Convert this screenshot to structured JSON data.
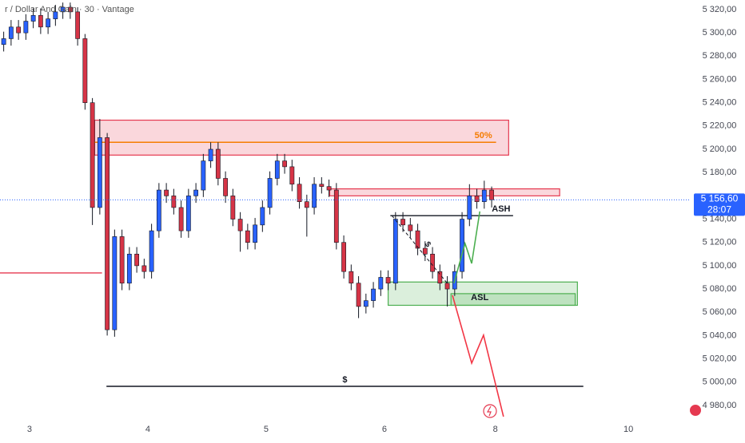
{
  "chart_data": {
    "type": "candlestick",
    "title": "r / Dollar And Gain · 30 · Vantage",
    "up_color": "#2962ff",
    "down_color": "#d63446",
    "open": [
      5290,
      5295,
      5305,
      5300,
      5310,
      5315,
      5305,
      5312,
      5318,
      5322,
      5318,
      5295,
      5240,
      5150,
      5210,
      5045,
      5125,
      5085,
      5110,
      5100,
      5095,
      5130,
      5165,
      5160,
      5150,
      5130,
      5160,
      5165,
      5190,
      5200,
      5175,
      5160,
      5140,
      5130,
      5120,
      5135,
      5150,
      5175,
      5190,
      5185,
      5170,
      5155,
      5150,
      5170,
      5168,
      5165,
      5120,
      5095,
      5085,
      5065,
      5070,
      5080,
      5090,
      5085,
      5140,
      5135,
      5130,
      5115,
      5110,
      5095,
      5085,
      5080,
      5095,
      5140,
      5160,
      5155,
      5165
    ],
    "high": [
      5301,
      5311,
      5311,
      5316,
      5321,
      5321,
      5318,
      5324,
      5326,
      5326,
      5322,
      5299,
      5244,
      5226,
      5214,
      5131,
      5131,
      5116,
      5116,
      5106,
      5136,
      5171,
      5171,
      5166,
      5156,
      5166,
      5171,
      5196,
      5206,
      5206,
      5181,
      5166,
      5146,
      5136,
      5141,
      5156,
      5181,
      5196,
      5196,
      5191,
      5176,
      5161,
      5176,
      5176,
      5174,
      5171,
      5126,
      5101,
      5091,
      5076,
      5086,
      5096,
      5096,
      5146,
      5146,
      5141,
      5136,
      5121,
      5116,
      5101,
      5091,
      5101,
      5146,
      5170,
      5166,
      5173,
      5168
    ],
    "low": [
      5284,
      5289,
      5294,
      5294,
      5304,
      5299,
      5299,
      5306,
      5312,
      5312,
      5289,
      5234,
      5135,
      5144,
      5040,
      5039,
      5079,
      5079,
      5094,
      5089,
      5089,
      5124,
      5154,
      5144,
      5124,
      5124,
      5154,
      5159,
      5184,
      5169,
      5154,
      5134,
      5112,
      5114,
      5114,
      5129,
      5144,
      5169,
      5179,
      5164,
      5149,
      5125,
      5144,
      5162,
      5159,
      5114,
      5089,
      5079,
      5055,
      5059,
      5064,
      5074,
      5079,
      5079,
      5129,
      5124,
      5109,
      5104,
      5089,
      5079,
      5065,
      5074,
      5089,
      5134,
      5149,
      5149,
      5150
    ],
    "close": [
      5295,
      5305,
      5300,
      5310,
      5315,
      5305,
      5312,
      5318,
      5322,
      5318,
      5295,
      5240,
      5150,
      5210,
      5045,
      5125,
      5085,
      5110,
      5100,
      5095,
      5130,
      5165,
      5160,
      5150,
      5130,
      5160,
      5165,
      5190,
      5200,
      5175,
      5160,
      5140,
      5130,
      5120,
      5135,
      5150,
      5175,
      5190,
      5185,
      5170,
      5155,
      5150,
      5170,
      5168,
      5165,
      5120,
      5095,
      5085,
      5065,
      5070,
      5080,
      5090,
      5085,
      5140,
      5135,
      5130,
      5115,
      5110,
      5095,
      5085,
      5080,
      5095,
      5140,
      5160,
      5155,
      5165,
      5156.6
    ],
    "xlim": [
      0,
      93.2
    ],
    "ylim": [
      4968.3,
      5328.2
    ],
    "xticks": [
      {
        "value": 4,
        "label": "3"
      },
      {
        "value": 20,
        "label": "4"
      },
      {
        "value": 36,
        "label": "5"
      },
      {
        "value": 52,
        "label": "6"
      },
      {
        "value": 67,
        "label": "8"
      },
      {
        "value": 85,
        "label": "10"
      }
    ],
    "yticks": [
      {
        "value": 5320,
        "label": "5 320,00"
      },
      {
        "value": 5300,
        "label": "5 300,00"
      },
      {
        "value": 5280,
        "label": "5 280,00"
      },
      {
        "value": 5260,
        "label": "5 260,00"
      },
      {
        "value": 5240,
        "label": "5 240,00"
      },
      {
        "value": 5220,
        "label": "5 220,00"
      },
      {
        "value": 5200,
        "label": "5 200,00"
      },
      {
        "value": 5180,
        "label": "5 180,00"
      },
      {
        "value": 5140,
        "label": "5 140,00"
      },
      {
        "value": 5120,
        "label": "5 120,00"
      },
      {
        "value": 5100,
        "label": "5 100,00"
      },
      {
        "value": 5080,
        "label": "5 080,00"
      },
      {
        "value": 5060,
        "label": "5 060,00"
      },
      {
        "value": 5040,
        "label": "5 040,00"
      },
      {
        "value": 5020,
        "label": "5 020,00"
      },
      {
        "value": 5000,
        "label": "5 000,00"
      },
      {
        "value": 4980,
        "label": "4 980,00"
      }
    ],
    "last_price": {
      "value": 5156.6,
      "label": "5 156,60",
      "countdown": "28:07",
      "color": "#2962ff"
    },
    "zones": [
      {
        "color": "#e53950",
        "y": [
          5225,
          5195
        ],
        "x": [
          12.8,
          68.8
        ]
      },
      {
        "color": "#e53950",
        "y": [
          5166,
          5160
        ],
        "x": [
          44.6,
          75.7
        ]
      },
      {
        "color": "#4caf50",
        "y": [
          5086,
          5066
        ],
        "x": [
          52.5,
          78.1
        ]
      },
      {
        "color": "#4caf50",
        "y": [
          5076,
          5066
        ],
        "x": [
          61.0,
          77.8
        ],
        "label": "ASL"
      }
    ],
    "levels": [
      {
        "color": "#f57c00",
        "y": 5206,
        "x": [
          12.8,
          67.1
        ],
        "label": "50%"
      },
      {
        "color": "#131722",
        "y": 5143,
        "x": [
          52.8,
          69.4
        ],
        "label": "ASH"
      },
      {
        "color": "#131722",
        "y": 4996.4,
        "x": [
          14.4,
          78.9
        ],
        "label": "$"
      },
      {
        "color": "#e53950",
        "y": 5093.8,
        "x": [
          0,
          13.8
        ]
      }
    ],
    "paths": [
      {
        "color": "#f23645",
        "x": [
          61.2,
          63.8,
          65.4,
          68.1
        ],
        "y": [
          5074.6,
          5016.3,
          5040.3,
          4970.4
        ]
      },
      {
        "color": "#4caf50",
        "x": [
          61.4,
          62.9,
          63.8,
          64.9
        ],
        "y": [
          5084.9,
          5119.1,
          5102.0,
          5146.6
        ]
      },
      {
        "color": "#131722",
        "dashed": true,
        "x": [
          53,
          60.5
        ],
        "y": [
          5143.1,
          5084.9
        ],
        "label": "$"
      }
    ]
  }
}
